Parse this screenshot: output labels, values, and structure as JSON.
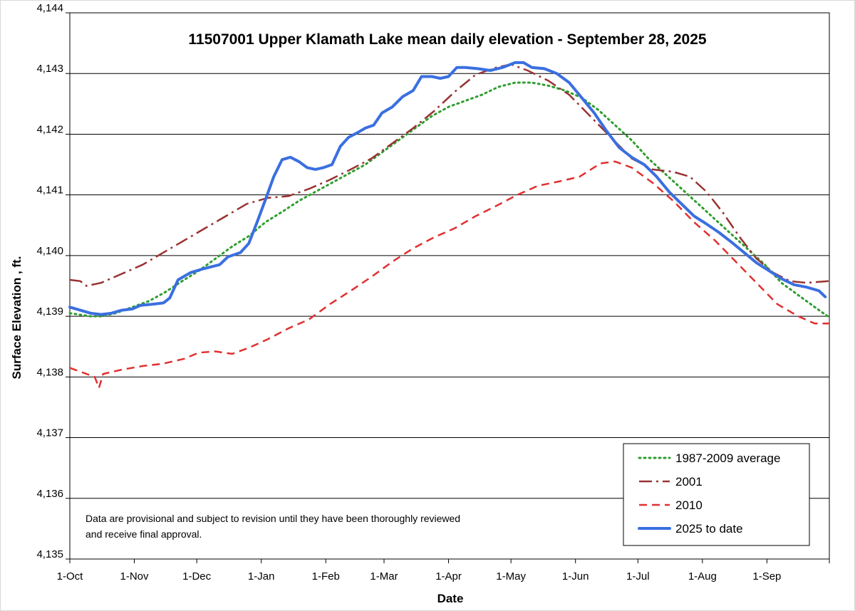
{
  "chart_data": {
    "type": "line",
    "title": "11507001 Upper Klamath Lake mean daily elevation  -  September 28, 2025",
    "xlabel": "Date",
    "ylabel": "Surface Elevation , ft.",
    "ylim": [
      4135,
      4144
    ],
    "yticks": [
      4135,
      4136,
      4137,
      4138,
      4139,
      4140,
      4141,
      4142,
      4143,
      4144
    ],
    "ytick_labels": [
      "4,135",
      "4,136",
      "4,137",
      "4,138",
      "4,139",
      "4,140",
      "4,141",
      "4,142",
      "4,143",
      "4,144"
    ],
    "xlim_days": [
      0,
      365
    ],
    "xticks": [
      0,
      31,
      61,
      92,
      123,
      151,
      182,
      212,
      243,
      273,
      304,
      335
    ],
    "xtick_labels": [
      "1-Oct",
      "1-Nov",
      "1-Dec",
      "1-Jan",
      "1-Feb",
      "1-Mar",
      "1-Apr",
      "1-May",
      "1-Jun",
      "1-Jul",
      "1-Aug",
      "1-Sep"
    ],
    "x_units": "days since 1-Oct",
    "grid": "horizontal",
    "legend_position": "bottom-right",
    "note": [
      "Data are provisional and subject to revision until they have been thoroughly reviewed",
      "and receive final approval."
    ],
    "series": [
      {
        "name": "1987-2009 average",
        "color": "#2e9e2e",
        "style": "dotted",
        "points": [
          [
            0,
            4139.05
          ],
          [
            10,
            4139.0
          ],
          [
            15,
            4139.0
          ],
          [
            22,
            4139.05
          ],
          [
            30,
            4139.15
          ],
          [
            38,
            4139.25
          ],
          [
            46,
            4139.4
          ],
          [
            54,
            4139.58
          ],
          [
            62,
            4139.75
          ],
          [
            70,
            4139.95
          ],
          [
            78,
            4140.15
          ],
          [
            86,
            4140.32
          ],
          [
            94,
            4140.55
          ],
          [
            102,
            4140.72
          ],
          [
            110,
            4140.9
          ],
          [
            118,
            4141.05
          ],
          [
            126,
            4141.2
          ],
          [
            134,
            4141.35
          ],
          [
            142,
            4141.5
          ],
          [
            150,
            4141.7
          ],
          [
            158,
            4141.9
          ],
          [
            166,
            4142.1
          ],
          [
            174,
            4142.3
          ],
          [
            182,
            4142.45
          ],
          [
            190,
            4142.55
          ],
          [
            198,
            4142.65
          ],
          [
            206,
            4142.78
          ],
          [
            214,
            4142.85
          ],
          [
            222,
            4142.85
          ],
          [
            230,
            4142.8
          ],
          [
            238,
            4142.72
          ],
          [
            246,
            4142.6
          ],
          [
            254,
            4142.4
          ],
          [
            262,
            4142.15
          ],
          [
            270,
            4141.9
          ],
          [
            278,
            4141.6
          ],
          [
            286,
            4141.35
          ],
          [
            294,
            4141.1
          ],
          [
            302,
            4140.85
          ],
          [
            310,
            4140.6
          ],
          [
            318,
            4140.35
          ],
          [
            326,
            4140.1
          ],
          [
            334,
            4139.85
          ],
          [
            342,
            4139.55
          ],
          [
            350,
            4139.35
          ],
          [
            358,
            4139.15
          ],
          [
            365,
            4138.98
          ]
        ]
      },
      {
        "name": "2001",
        "color": "#993333",
        "style": "dashdot",
        "points": [
          [
            0,
            4139.6
          ],
          [
            5,
            4139.58
          ],
          [
            8,
            4139.5
          ],
          [
            15,
            4139.55
          ],
          [
            25,
            4139.7
          ],
          [
            35,
            4139.85
          ],
          [
            45,
            4140.05
          ],
          [
            55,
            4140.25
          ],
          [
            65,
            4140.45
          ],
          [
            75,
            4140.65
          ],
          [
            85,
            4140.85
          ],
          [
            95,
            4140.95
          ],
          [
            105,
            4140.98
          ],
          [
            115,
            4141.1
          ],
          [
            125,
            4141.25
          ],
          [
            135,
            4141.42
          ],
          [
            145,
            4141.6
          ],
          [
            155,
            4141.85
          ],
          [
            165,
            4142.1
          ],
          [
            175,
            4142.38
          ],
          [
            185,
            4142.7
          ],
          [
            195,
            4142.98
          ],
          [
            205,
            4143.1
          ],
          [
            212,
            4143.15
          ],
          [
            220,
            4143.05
          ],
          [
            230,
            4142.88
          ],
          [
            240,
            4142.65
          ],
          [
            250,
            4142.3
          ],
          [
            260,
            4141.95
          ],
          [
            270,
            4141.6
          ],
          [
            280,
            4141.42
          ],
          [
            290,
            4141.38
          ],
          [
            298,
            4141.3
          ],
          [
            306,
            4141.05
          ],
          [
            314,
            4140.7
          ],
          [
            322,
            4140.3
          ],
          [
            330,
            4139.95
          ],
          [
            338,
            4139.72
          ],
          [
            346,
            4139.58
          ],
          [
            354,
            4139.55
          ],
          [
            365,
            4139.58
          ]
        ]
      },
      {
        "name": "2010",
        "color": "#e03030",
        "style": "dashed",
        "points": [
          [
            0,
            4138.15
          ],
          [
            8,
            4138.05
          ],
          [
            12,
            4138.0
          ],
          [
            14,
            4137.82
          ],
          [
            16,
            4138.05
          ],
          [
            25,
            4138.12
          ],
          [
            35,
            4138.18
          ],
          [
            45,
            4138.22
          ],
          [
            55,
            4138.3
          ],
          [
            62,
            4138.4
          ],
          [
            70,
            4138.42
          ],
          [
            78,
            4138.38
          ],
          [
            86,
            4138.48
          ],
          [
            95,
            4138.62
          ],
          [
            105,
            4138.8
          ],
          [
            115,
            4138.95
          ],
          [
            125,
            4139.2
          ],
          [
            135,
            4139.42
          ],
          [
            145,
            4139.65
          ],
          [
            155,
            4139.9
          ],
          [
            165,
            4140.12
          ],
          [
            175,
            4140.3
          ],
          [
            185,
            4140.45
          ],
          [
            195,
            4140.65
          ],
          [
            205,
            4140.82
          ],
          [
            215,
            4141.0
          ],
          [
            225,
            4141.15
          ],
          [
            235,
            4141.22
          ],
          [
            245,
            4141.3
          ],
          [
            255,
            4141.52
          ],
          [
            262,
            4141.55
          ],
          [
            270,
            4141.45
          ],
          [
            280,
            4141.2
          ],
          [
            290,
            4140.9
          ],
          [
            300,
            4140.55
          ],
          [
            310,
            4140.25
          ],
          [
            320,
            4139.9
          ],
          [
            330,
            4139.55
          ],
          [
            340,
            4139.2
          ],
          [
            350,
            4139.0
          ],
          [
            358,
            4138.88
          ],
          [
            365,
            4138.88
          ]
        ]
      },
      {
        "name": "2025 to date",
        "color": "#3a6fe0",
        "style": "solid",
        "points": [
          [
            0,
            4139.15
          ],
          [
            5,
            4139.1
          ],
          [
            10,
            4139.05
          ],
          [
            15,
            4139.03
          ],
          [
            20,
            4139.05
          ],
          [
            25,
            4139.1
          ],
          [
            30,
            4139.12
          ],
          [
            34,
            4139.18
          ],
          [
            40,
            4139.2
          ],
          [
            45,
            4139.22
          ],
          [
            48,
            4139.3
          ],
          [
            52,
            4139.6
          ],
          [
            58,
            4139.72
          ],
          [
            64,
            4139.78
          ],
          [
            72,
            4139.85
          ],
          [
            76,
            4139.98
          ],
          [
            82,
            4140.05
          ],
          [
            86,
            4140.2
          ],
          [
            90,
            4140.55
          ],
          [
            94,
            4140.92
          ],
          [
            98,
            4141.3
          ],
          [
            102,
            4141.58
          ],
          [
            106,
            4141.62
          ],
          [
            110,
            4141.55
          ],
          [
            114,
            4141.45
          ],
          [
            118,
            4141.42
          ],
          [
            122,
            4141.45
          ],
          [
            126,
            4141.5
          ],
          [
            130,
            4141.8
          ],
          [
            134,
            4141.95
          ],
          [
            138,
            4142.02
          ],
          [
            142,
            4142.1
          ],
          [
            146,
            4142.15
          ],
          [
            150,
            4142.35
          ],
          [
            155,
            4142.45
          ],
          [
            160,
            4142.62
          ],
          [
            165,
            4142.72
          ],
          [
            169,
            4142.95
          ],
          [
            174,
            4142.95
          ],
          [
            178,
            4142.92
          ],
          [
            182,
            4142.95
          ],
          [
            186,
            4143.1
          ],
          [
            190,
            4143.1
          ],
          [
            196,
            4143.08
          ],
          [
            202,
            4143.05
          ],
          [
            208,
            4143.1
          ],
          [
            214,
            4143.18
          ],
          [
            218,
            4143.18
          ],
          [
            222,
            4143.1
          ],
          [
            228,
            4143.08
          ],
          [
            234,
            4143.0
          ],
          [
            240,
            4142.85
          ],
          [
            246,
            4142.6
          ],
          [
            252,
            4142.35
          ],
          [
            258,
            4142.05
          ],
          [
            264,
            4141.78
          ],
          [
            270,
            4141.62
          ],
          [
            276,
            4141.5
          ],
          [
            282,
            4141.3
          ],
          [
            288,
            4141.05
          ],
          [
            294,
            4140.85
          ],
          [
            300,
            4140.65
          ],
          [
            306,
            4140.52
          ],
          [
            312,
            4140.38
          ],
          [
            318,
            4140.22
          ],
          [
            324,
            4140.05
          ],
          [
            330,
            4139.88
          ],
          [
            336,
            4139.75
          ],
          [
            342,
            4139.62
          ],
          [
            348,
            4139.52
          ],
          [
            354,
            4139.48
          ],
          [
            360,
            4139.42
          ],
          [
            363,
            4139.32
          ]
        ]
      }
    ]
  }
}
